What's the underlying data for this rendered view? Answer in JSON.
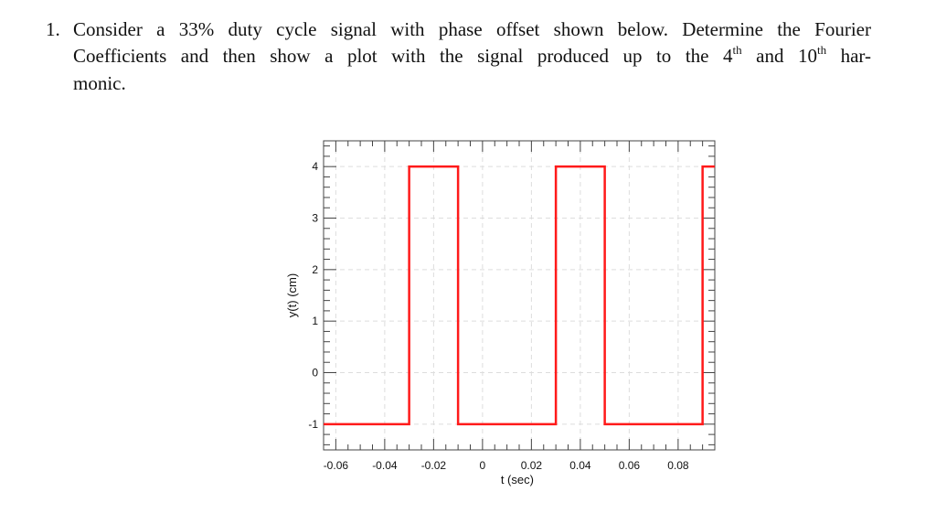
{
  "question": {
    "number": "1.",
    "line1": "Consider a 33% duty cycle signal with phase offset shown below. Determine the Fourier",
    "line2_a": "Coefficients and then show a plot with the signal produced up to the 4",
    "line2_sup1": "th",
    "line2_b": " and 10",
    "line2_sup2": "th",
    "line2_c": " har-",
    "line3": "monic."
  },
  "chart_data": {
    "type": "line",
    "title": "",
    "xlabel": "t (sec)",
    "ylabel": "y(t) (cm)",
    "xlim": [
      -0.065,
      0.095
    ],
    "ylim": [
      -1.5,
      4.5
    ],
    "xticks": [
      -0.06,
      -0.04,
      -0.02,
      0,
      0.02,
      0.04,
      0.06,
      0.08
    ],
    "xtick_labels": [
      "-0.06",
      "-0.04",
      "-0.02",
      "0",
      "0.02",
      "0.04",
      "0.06",
      "0.08"
    ],
    "yticks": [
      -1,
      0,
      1,
      2,
      3,
      4
    ],
    "ytick_labels": [
      "-1",
      "0",
      "1",
      "2",
      "3",
      "4"
    ],
    "grid": true,
    "series": [
      {
        "color": "#ff1a1a",
        "x": [
          -0.065,
          -0.03,
          -0.03,
          -0.01,
          -0.01,
          0.03,
          0.03,
          0.05,
          0.05,
          0.09,
          0.09,
          0.095
        ],
        "y": [
          -1,
          -1,
          4,
          4,
          -1,
          -1,
          4,
          4,
          -1,
          -1,
          4,
          4
        ]
      }
    ]
  }
}
